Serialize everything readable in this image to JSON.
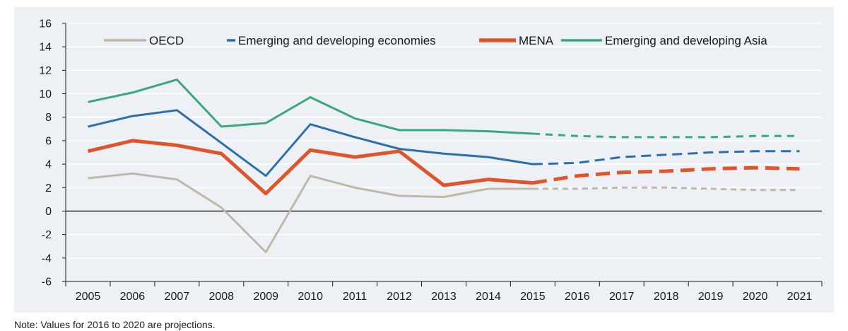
{
  "chart_data": {
    "type": "line",
    "title": "",
    "xlabel": "",
    "ylabel": "",
    "x": [
      "2005",
      "2006",
      "2007",
      "2008",
      "2009",
      "2010",
      "2011",
      "2012",
      "2013",
      "2014",
      "2015",
      "2016",
      "2017",
      "2018",
      "2019",
      "2020",
      "2021"
    ],
    "ylim": [
      -6,
      16
    ],
    "yticks": [
      -6,
      -4,
      -2,
      0,
      2,
      4,
      6,
      8,
      10,
      12,
      14,
      16
    ],
    "grid": true,
    "legend_position": "top",
    "projection_start": "2015",
    "series": [
      {
        "name": "OECD",
        "color": "#beb8a8",
        "values": [
          2.8,
          3.2,
          2.7,
          0.3,
          -3.5,
          3.0,
          2.0,
          1.3,
          1.2,
          1.9,
          1.9,
          1.9,
          2.0,
          2.0,
          1.9,
          1.8,
          1.8
        ]
      },
      {
        "name": "Emerging and developing economies",
        "color": "#2b6fad",
        "values": [
          7.2,
          8.1,
          8.6,
          5.8,
          3.0,
          7.4,
          6.3,
          5.3,
          4.9,
          4.6,
          4.0,
          4.1,
          4.6,
          4.8,
          5.0,
          5.1,
          5.1
        ]
      },
      {
        "name": "MENA",
        "color": "#e0542a",
        "values": [
          5.1,
          6.0,
          5.6,
          4.9,
          1.5,
          5.2,
          4.6,
          5.1,
          2.2,
          2.7,
          2.4,
          3.0,
          3.3,
          3.4,
          3.6,
          3.7,
          3.6
        ]
      },
      {
        "name": "Emerging and developing Asia",
        "color": "#3aa87a",
        "values": [
          9.3,
          10.1,
          11.2,
          7.2,
          7.5,
          9.7,
          7.9,
          6.9,
          6.9,
          6.8,
          6.6,
          6.4,
          6.3,
          6.3,
          6.3,
          6.4,
          6.4
        ]
      }
    ],
    "note": "Note: Values for 2016 to 2020 are projections."
  },
  "colors": {
    "plot_background": "#edf1f5",
    "gridline": "#ffffff",
    "zero_line": "#1a1a1a",
    "axis_text": "#1a1a1a"
  }
}
